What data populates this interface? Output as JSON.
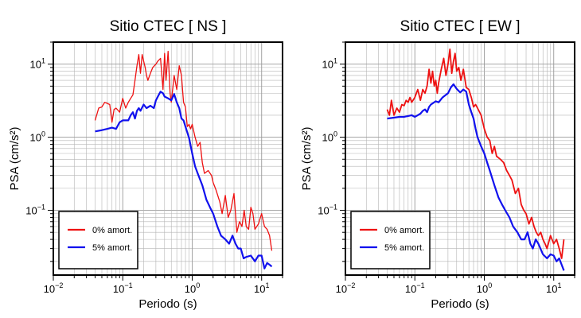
{
  "chart_data": [
    {
      "type": "line",
      "title": "Sitio CTEC [ NS ]",
      "xlabel": "Periodo (s)",
      "ylabel": "PSA (cm/s²)",
      "xscale": "log",
      "yscale": "log",
      "xlim": [
        0.01,
        20
      ],
      "ylim": [
        0.013,
        20
      ],
      "xticks": [
        {
          "base": "10",
          "exp": "−2",
          "value": 0.01
        },
        {
          "base": "10",
          "exp": "−1",
          "value": 0.1
        },
        {
          "base": "10",
          "exp": "0",
          "value": 1
        },
        {
          "base": "10",
          "exp": "1",
          "value": 10
        }
      ],
      "yticks": [
        {
          "base": "10",
          "exp": "−1",
          "value": 0.1
        },
        {
          "base": "10",
          "exp": "0",
          "value": 1
        },
        {
          "base": "10",
          "exp": "1",
          "value": 10
        }
      ],
      "grid": true,
      "legend_position": "bottom-left",
      "series": [
        {
          "name": "0% amort.",
          "color": "#ee1111",
          "width": 1.3,
          "x": [
            0.04,
            0.045,
            0.05,
            0.055,
            0.06,
            0.065,
            0.07,
            0.075,
            0.08,
            0.09,
            0.1,
            0.11,
            0.12,
            0.13,
            0.14,
            0.15,
            0.16,
            0.17,
            0.18,
            0.19,
            0.2,
            0.21,
            0.22,
            0.23,
            0.25,
            0.27,
            0.3,
            0.32,
            0.35,
            0.38,
            0.4,
            0.42,
            0.45,
            0.48,
            0.5,
            0.55,
            0.6,
            0.65,
            0.7,
            0.75,
            0.8,
            0.85,
            0.9,
            0.95,
            1.0,
            1.1,
            1.2,
            1.3,
            1.4,
            1.5,
            1.7,
            1.9,
            2.0,
            2.2,
            2.5,
            2.7,
            3.0,
            3.3,
            3.6,
            4.0,
            4.4,
            4.8,
            5.2,
            5.6,
            6.0,
            6.5,
            7.0,
            7.5,
            8.0,
            9.0,
            10.0,
            11.0,
            12.0,
            13.0,
            14.0
          ],
          "values": [
            1.7,
            2.5,
            2.6,
            3.0,
            2.9,
            2.8,
            1.6,
            2.4,
            2.5,
            2.2,
            3.4,
            2.5,
            3.0,
            3.4,
            3.8,
            6.0,
            9.5,
            13.5,
            7.5,
            13.5,
            11.0,
            9.0,
            7.0,
            6.0,
            7.5,
            9.0,
            10.0,
            11.0,
            12.0,
            4.5,
            14.0,
            6.0,
            15.0,
            4.0,
            3.0,
            7.0,
            4.5,
            9.5,
            7.0,
            3.0,
            2.6,
            1.4,
            1.5,
            1.3,
            1.5,
            1.0,
            0.75,
            0.85,
            0.45,
            0.32,
            0.35,
            0.3,
            0.24,
            0.19,
            0.13,
            0.09,
            0.16,
            0.08,
            0.1,
            0.17,
            0.05,
            0.07,
            0.06,
            0.1,
            0.06,
            0.055,
            0.11,
            0.09,
            0.055,
            0.065,
            0.09,
            0.06,
            0.055,
            0.045,
            0.028
          ]
        },
        {
          "name": "5% amort.",
          "color": "#1111ee",
          "width": 2.2,
          "x": [
            0.04,
            0.05,
            0.06,
            0.07,
            0.08,
            0.09,
            0.1,
            0.11,
            0.12,
            0.13,
            0.14,
            0.15,
            0.16,
            0.17,
            0.18,
            0.2,
            0.22,
            0.25,
            0.28,
            0.3,
            0.33,
            0.35,
            0.38,
            0.4,
            0.45,
            0.5,
            0.55,
            0.6,
            0.65,
            0.7,
            0.75,
            0.8,
            0.9,
            1.0,
            1.1,
            1.2,
            1.4,
            1.6,
            1.8,
            2.0,
            2.3,
            2.6,
            3.0,
            3.4,
            3.8,
            4.2,
            4.6,
            5.0,
            5.5,
            6.0,
            7.0,
            8.0,
            9.0,
            10.0,
            11.0,
            12.0,
            13.0,
            14.0
          ],
          "values": [
            1.2,
            1.25,
            1.3,
            1.35,
            1.3,
            1.6,
            1.7,
            1.7,
            1.7,
            2.0,
            2.2,
            1.8,
            2.3,
            2.5,
            2.3,
            2.8,
            2.5,
            2.7,
            2.5,
            3.2,
            3.8,
            4.2,
            4.0,
            3.6,
            3.4,
            3.2,
            3.9,
            3.0,
            2.5,
            1.8,
            1.7,
            1.4,
            0.98,
            0.6,
            0.4,
            0.32,
            0.22,
            0.14,
            0.11,
            0.09,
            0.06,
            0.045,
            0.04,
            0.035,
            0.045,
            0.035,
            0.03,
            0.03,
            0.022,
            0.023,
            0.024,
            0.02,
            0.024,
            0.024,
            0.016,
            0.019,
            0.018,
            0.017
          ]
        }
      ]
    },
    {
      "type": "line",
      "title": "Sitio CTEC [ EW ]",
      "xlabel": "Periodo (s)",
      "ylabel": "PSA (cm/s²)",
      "xscale": "log",
      "yscale": "log",
      "xlim": [
        0.01,
        20
      ],
      "ylim": [
        0.013,
        20
      ],
      "xticks": [
        {
          "base": "10",
          "exp": "−2",
          "value": 0.01
        },
        {
          "base": "10",
          "exp": "−1",
          "value": 0.1
        },
        {
          "base": "10",
          "exp": "0",
          "value": 1
        },
        {
          "base": "10",
          "exp": "1",
          "value": 10
        }
      ],
      "yticks": [
        {
          "base": "10",
          "exp": "−1",
          "value": 0.1
        },
        {
          "base": "10",
          "exp": "0",
          "value": 1
        },
        {
          "base": "10",
          "exp": "1",
          "value": 10
        }
      ],
      "grid": true,
      "legend_position": "bottom-left",
      "series": [
        {
          "name": "0% amort.",
          "color": "#ee1111",
          "width": 1.8,
          "x": [
            0.04,
            0.043,
            0.046,
            0.05,
            0.055,
            0.06,
            0.065,
            0.07,
            0.075,
            0.08,
            0.085,
            0.09,
            0.1,
            0.11,
            0.12,
            0.13,
            0.14,
            0.15,
            0.16,
            0.17,
            0.18,
            0.19,
            0.2,
            0.21,
            0.22,
            0.24,
            0.26,
            0.28,
            0.3,
            0.32,
            0.34,
            0.36,
            0.38,
            0.4,
            0.43,
            0.46,
            0.5,
            0.55,
            0.6,
            0.65,
            0.7,
            0.75,
            0.8,
            0.9,
            1.0,
            1.1,
            1.2,
            1.3,
            1.4,
            1.5,
            1.7,
            1.9,
            2.1,
            2.3,
            2.5,
            2.8,
            3.1,
            3.4,
            3.7,
            4.0,
            4.4,
            4.8,
            5.2,
            5.6,
            6.0,
            6.5,
            7.0,
            7.5,
            8.0,
            9.0,
            10.0,
            11.0,
            12.0,
            13.0,
            14.0
          ],
          "values": [
            2.4,
            2.0,
            3.2,
            2.0,
            2.5,
            2.2,
            2.8,
            2.7,
            3.2,
            3.0,
            3.5,
            3.0,
            3.5,
            4.5,
            3.2,
            4.5,
            4.0,
            5.0,
            8.5,
            5.5,
            8.0,
            5.0,
            6.0,
            4.0,
            5.5,
            8.5,
            12.0,
            7.0,
            10.0,
            16.0,
            7.5,
            11.0,
            14.0,
            8.0,
            9.0,
            6.0,
            8.5,
            4.8,
            4.5,
            3.5,
            2.6,
            2.8,
            2.5,
            2.0,
            1.3,
            1.0,
            0.9,
            0.6,
            0.75,
            0.55,
            0.5,
            0.45,
            0.35,
            0.3,
            0.26,
            0.17,
            0.2,
            0.12,
            0.1,
            0.09,
            0.065,
            0.08,
            0.06,
            0.05,
            0.045,
            0.05,
            0.04,
            0.035,
            0.03,
            0.045,
            0.035,
            0.04,
            0.03,
            0.022,
            0.04
          ]
        },
        {
          "name": "5% amort.",
          "color": "#1111ee",
          "width": 2.2,
          "x": [
            0.04,
            0.05,
            0.06,
            0.07,
            0.08,
            0.09,
            0.1,
            0.11,
            0.12,
            0.13,
            0.14,
            0.15,
            0.16,
            0.17,
            0.18,
            0.2,
            0.22,
            0.25,
            0.28,
            0.3,
            0.33,
            0.36,
            0.4,
            0.45,
            0.5,
            0.55,
            0.6,
            0.65,
            0.7,
            0.75,
            0.8,
            0.9,
            1.0,
            1.1,
            1.2,
            1.4,
            1.6,
            1.8,
            2.0,
            2.3,
            2.6,
            3.0,
            3.4,
            3.8,
            4.2,
            4.6,
            5.0,
            5.5,
            6.0,
            7.0,
            8.0,
            9.0,
            10.0,
            11.0,
            12.0,
            13.0,
            14.0
          ],
          "values": [
            1.8,
            1.85,
            1.9,
            1.9,
            1.95,
            2.0,
            1.9,
            2.0,
            2.1,
            2.3,
            2.4,
            2.2,
            2.6,
            2.8,
            2.9,
            3.1,
            3.0,
            3.5,
            3.8,
            4.0,
            4.8,
            5.3,
            4.6,
            4.1,
            4.5,
            4.2,
            2.8,
            2.2,
            1.8,
            1.3,
            1.0,
            0.75,
            0.6,
            0.45,
            0.35,
            0.22,
            0.15,
            0.12,
            0.1,
            0.08,
            0.06,
            0.05,
            0.04,
            0.04,
            0.05,
            0.035,
            0.03,
            0.04,
            0.035,
            0.025,
            0.022,
            0.025,
            0.024,
            0.02,
            0.022,
            0.018,
            0.015
          ]
        }
      ]
    }
  ]
}
